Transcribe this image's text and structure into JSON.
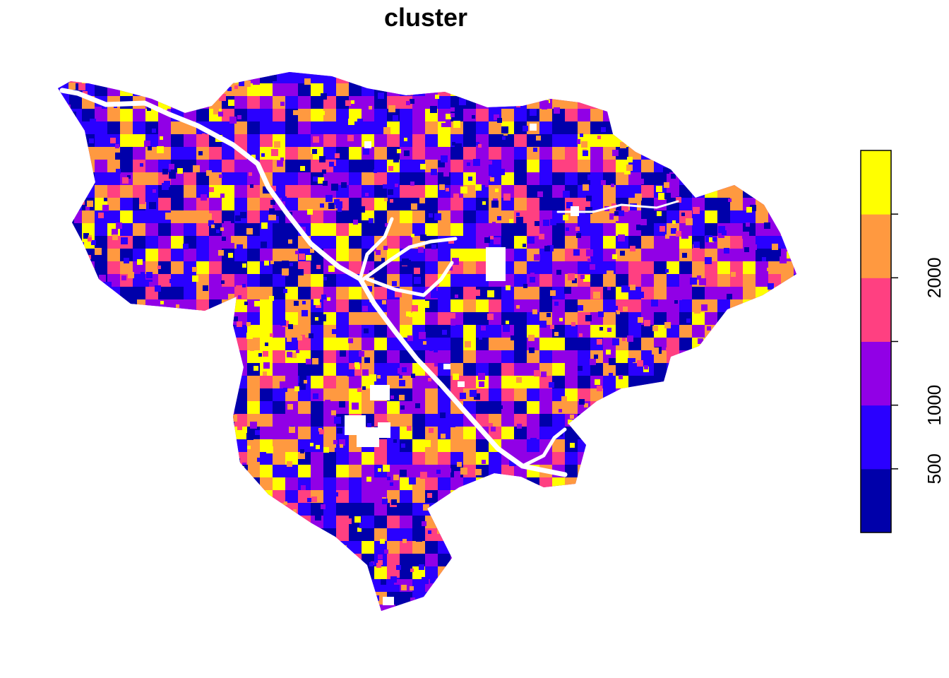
{
  "title": "cluster",
  "legend": {
    "palette": [
      "#0000AA",
      "#2A00FF",
      "#9100E6",
      "#FF4081",
      "#FF9940",
      "#FFFF00"
    ],
    "tick_labels": [
      {
        "label": "500",
        "value": 500
      },
      {
        "label": "1000",
        "value": 1000
      },
      {
        "label": "2000",
        "value": 2000
      }
    ],
    "breaks": [
      500,
      1000,
      1500,
      2000,
      2500
    ]
  },
  "map": {
    "type": "raster",
    "river_color": "#ffffff"
  }
}
